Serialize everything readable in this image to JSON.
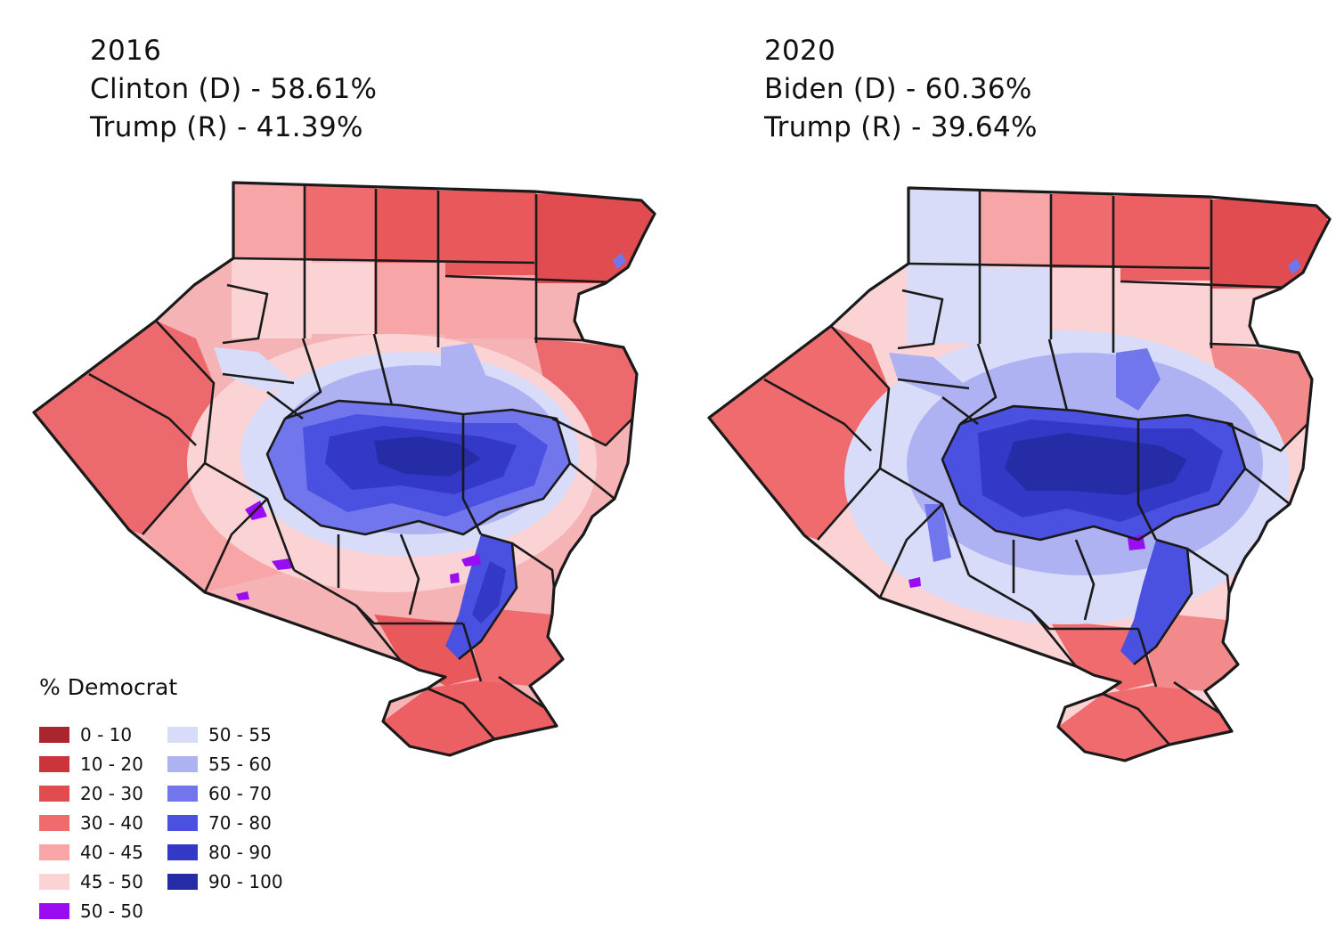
{
  "maps": [
    {
      "year": "2016",
      "line_d": "Clinton (D) - 58.61%",
      "line_r": "Trump (R) - 41.39%"
    },
    {
      "year": "2020",
      "line_d": "Biden (D) - 60.36%",
      "line_r": "Trump (R) - 39.64%"
    }
  ],
  "legend": {
    "title": "% Democrat",
    "items": [
      {
        "label": "0 - 10",
        "color": "#a8262c"
      },
      {
        "label": "10 - 20",
        "color": "#c9353a"
      },
      {
        "label": "20 - 30",
        "color": "#e04c50"
      },
      {
        "label": "30 - 40",
        "color": "#f06b6e"
      },
      {
        "label": "40 - 45",
        "color": "#f7a5a7"
      },
      {
        "label": "45 - 50",
        "color": "#fbd3d5"
      },
      {
        "label": "50 - 50",
        "color": "#9a0cf2"
      },
      {
        "label": "50 - 55",
        "color": "#d8dcf8"
      },
      {
        "label": "55 - 60",
        "color": "#aeb2f3"
      },
      {
        "label": "60 - 70",
        "color": "#7276ec"
      },
      {
        "label": "70 - 80",
        "color": "#4a50e0"
      },
      {
        "label": "80 - 90",
        "color": "#3338c6"
      },
      {
        "label": "90 - 100",
        "color": "#262ca6"
      }
    ]
  }
}
